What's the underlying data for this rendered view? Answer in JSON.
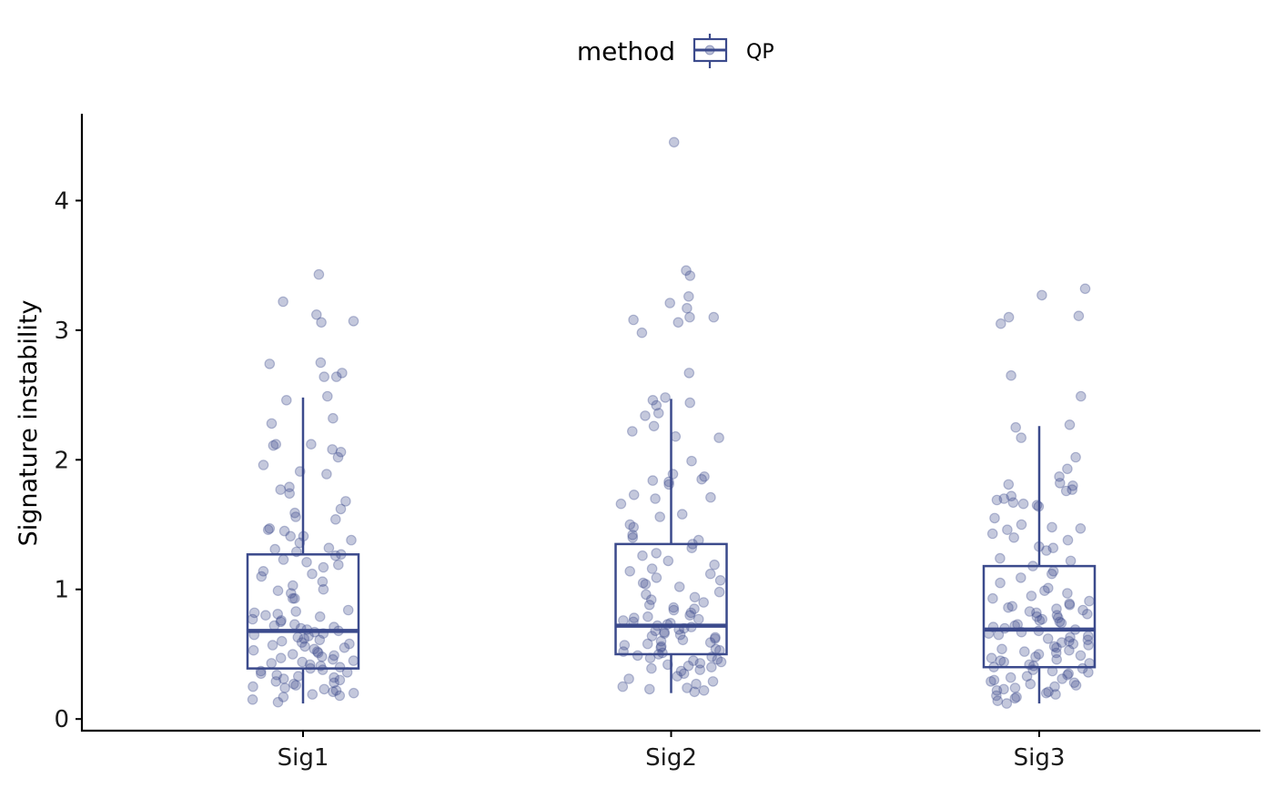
{
  "chart_data": {
    "type": "box",
    "title": "",
    "xlabel": "",
    "ylabel": "Signature instability",
    "ylim": [
      -0.09,
      4.67
    ],
    "yticks": [
      0,
      1,
      2,
      3,
      4
    ],
    "categories": [
      "Sig1",
      "Sig2",
      "Sig3"
    ],
    "grid": false,
    "legend": {
      "title": "method",
      "entries": [
        "QP"
      ],
      "position": "top"
    },
    "colors": {
      "series": "#3b4a8c",
      "point": "#3b4a8c",
      "axis": "#000000"
    },
    "series": [
      {
        "name": "QP",
        "boxes": [
          {
            "category": "Sig1",
            "q1": 0.39,
            "median": 0.68,
            "q3": 1.27,
            "whisker_low": 0.12,
            "whisker_high": 2.48
          },
          {
            "category": "Sig2",
            "q1": 0.5,
            "median": 0.72,
            "q3": 1.35,
            "whisker_low": 0.2,
            "whisker_high": 2.47
          },
          {
            "category": "Sig3",
            "q1": 0.4,
            "median": 0.69,
            "q3": 1.18,
            "whisker_low": 0.12,
            "whisker_high": 2.26
          }
        ],
        "points": [
          {
            "category": "Sig1",
            "values": [
              3.43,
              3.22,
              3.12,
              3.07,
              3.06,
              2.75,
              2.74,
              2.67,
              2.64,
              2.64,
              2.49,
              2.46,
              2.32,
              2.28,
              2.12,
              2.12,
              2.11,
              2.08,
              2.06,
              2.02,
              1.96,
              1.91,
              1.89,
              1.79,
              1.77,
              1.74,
              1.68,
              1.62,
              1.59,
              1.56,
              1.54,
              1.47,
              1.46,
              1.45,
              1.41,
              1.41,
              1.38,
              1.36,
              1.32,
              1.31,
              1.29,
              1.27,
              1.26,
              1.23,
              1.21,
              1.19,
              1.17,
              1.14,
              1.12,
              1.1,
              1.06,
              1.03,
              1.0,
              0.99,
              0.97,
              0.93,
              0.93,
              0.84,
              0.83,
              0.82,
              0.81,
              0.8,
              0.79,
              0.77,
              0.76,
              0.75,
              0.73,
              0.72,
              0.71,
              0.7,
              0.69,
              0.68,
              0.67,
              0.66,
              0.65,
              0.64,
              0.63,
              0.62,
              0.61,
              0.6,
              0.59,
              0.58,
              0.57,
              0.56,
              0.55,
              0.54,
              0.53,
              0.52,
              0.51,
              0.5,
              0.49,
              0.48,
              0.47,
              0.46,
              0.45,
              0.44,
              0.43,
              0.42,
              0.41,
              0.4,
              0.39,
              0.38,
              0.37,
              0.36,
              0.35,
              0.34,
              0.33,
              0.32,
              0.31,
              0.3,
              0.29,
              0.28,
              0.27,
              0.26,
              0.25,
              0.24,
              0.23,
              0.22,
              0.21,
              0.2,
              0.19,
              0.18,
              0.17,
              0.15,
              0.13
            ]
          },
          {
            "category": "Sig2",
            "values": [
              4.45,
              3.46,
              3.42,
              3.26,
              3.21,
              3.17,
              3.1,
              3.1,
              3.08,
              3.06,
              2.98,
              2.67,
              2.48,
              2.46,
              2.44,
              2.42,
              2.36,
              2.34,
              2.26,
              2.22,
              2.18,
              2.17,
              1.99,
              1.89,
              1.87,
              1.85,
              1.84,
              1.83,
              1.81,
              1.73,
              1.71,
              1.7,
              1.66,
              1.58,
              1.56,
              1.5,
              1.48,
              1.42,
              1.4,
              1.38,
              1.35,
              1.32,
              1.28,
              1.26,
              1.22,
              1.19,
              1.16,
              1.14,
              1.12,
              1.09,
              1.07,
              1.05,
              1.04,
              1.02,
              0.98,
              0.96,
              0.94,
              0.92,
              0.9,
              0.88,
              0.86,
              0.85,
              0.84,
              0.82,
              0.8,
              0.79,
              0.78,
              0.77,
              0.76,
              0.75,
              0.74,
              0.73,
              0.72,
              0.71,
              0.7,
              0.69,
              0.68,
              0.67,
              0.66,
              0.65,
              0.64,
              0.63,
              0.62,
              0.61,
              0.6,
              0.59,
              0.58,
              0.57,
              0.56,
              0.55,
              0.54,
              0.53,
              0.52,
              0.51,
              0.5,
              0.49,
              0.48,
              0.47,
              0.46,
              0.45,
              0.44,
              0.43,
              0.42,
              0.41,
              0.4,
              0.39,
              0.38,
              0.37,
              0.35,
              0.33,
              0.31,
              0.29,
              0.27,
              0.25,
              0.24,
              0.23,
              0.22,
              0.21
            ]
          },
          {
            "category": "Sig3",
            "values": [
              3.32,
              3.27,
              3.11,
              3.1,
              3.05,
              2.65,
              2.49,
              2.27,
              2.25,
              2.17,
              2.02,
              1.93,
              1.87,
              1.82,
              1.81,
              1.8,
              1.77,
              1.76,
              1.72,
              1.7,
              1.69,
              1.67,
              1.66,
              1.65,
              1.64,
              1.55,
              1.5,
              1.48,
              1.47,
              1.46,
              1.43,
              1.4,
              1.38,
              1.33,
              1.32,
              1.3,
              1.24,
              1.22,
              1.18,
              1.14,
              1.12,
              1.09,
              1.05,
              1.01,
              0.99,
              0.97,
              0.95,
              0.93,
              0.91,
              0.89,
              0.88,
              0.87,
              0.86,
              0.85,
              0.84,
              0.83,
              0.82,
              0.81,
              0.8,
              0.79,
              0.78,
              0.77,
              0.76,
              0.75,
              0.74,
              0.73,
              0.72,
              0.71,
              0.7,
              0.69,
              0.68,
              0.67,
              0.66,
              0.65,
              0.64,
              0.63,
              0.62,
              0.61,
              0.6,
              0.59,
              0.58,
              0.57,
              0.56,
              0.55,
              0.54,
              0.53,
              0.52,
              0.51,
              0.5,
              0.49,
              0.48,
              0.47,
              0.46,
              0.45,
              0.44,
              0.43,
              0.42,
              0.41,
              0.4,
              0.39,
              0.38,
              0.37,
              0.36,
              0.35,
              0.34,
              0.33,
              0.32,
              0.31,
              0.3,
              0.29,
              0.28,
              0.27,
              0.26,
              0.25,
              0.24,
              0.23,
              0.22,
              0.21,
              0.2,
              0.19,
              0.18,
              0.17,
              0.16,
              0.14,
              0.12
            ]
          }
        ]
      }
    ]
  }
}
